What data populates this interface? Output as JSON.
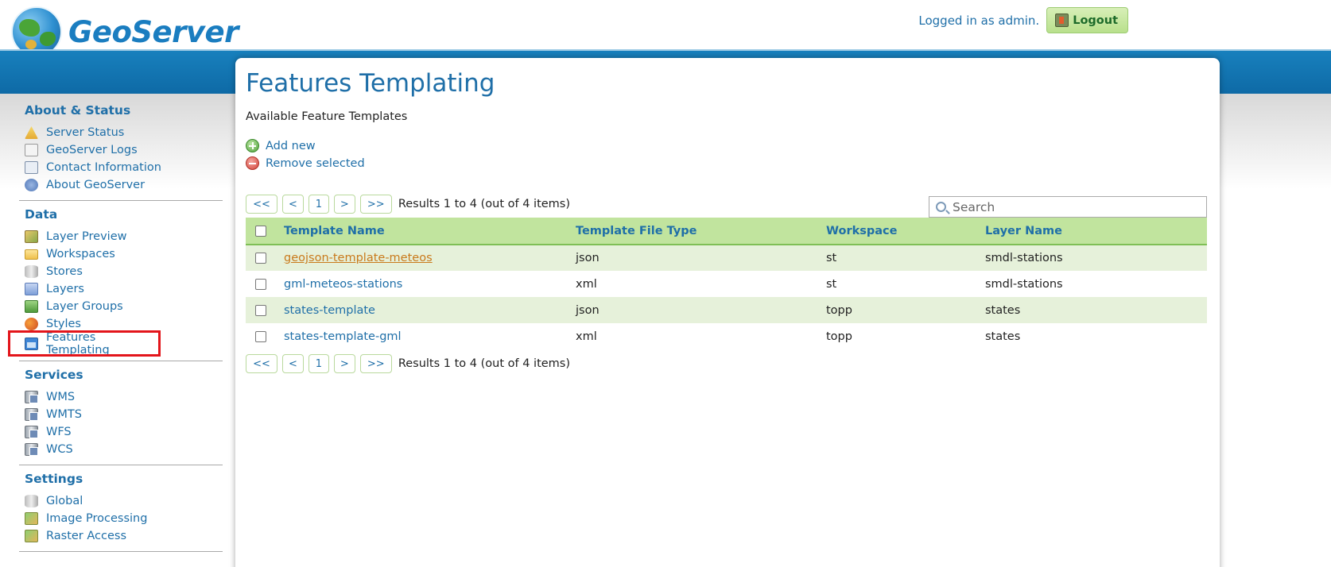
{
  "header": {
    "logo_text": "GeoServer",
    "login_status": "Logged in as admin.",
    "logout_label": "Logout"
  },
  "sidebar": {
    "sections": [
      {
        "title": "About & Status",
        "items": [
          {
            "label": "Server Status",
            "icon": "warning-icon"
          },
          {
            "label": "GeoServer Logs",
            "icon": "document-icon"
          },
          {
            "label": "Contact Information",
            "icon": "contact-card-icon"
          },
          {
            "label": "About GeoServer",
            "icon": "help-icon"
          }
        ]
      },
      {
        "title": "Data",
        "items": [
          {
            "label": "Layer Preview",
            "icon": "map-icon"
          },
          {
            "label": "Workspaces",
            "icon": "folder-icon"
          },
          {
            "label": "Stores",
            "icon": "database-icon"
          },
          {
            "label": "Layers",
            "icon": "layer-icon"
          },
          {
            "label": "Layer Groups",
            "icon": "layer-group-icon"
          },
          {
            "label": "Styles",
            "icon": "palette-icon"
          },
          {
            "label": "Features Templating",
            "icon": "template-icon",
            "highlighted": true
          }
        ]
      },
      {
        "title": "Services",
        "items": [
          {
            "label": "WMS",
            "icon": "wms-service-icon"
          },
          {
            "label": "WMTS",
            "icon": "wmts-service-icon"
          },
          {
            "label": "WFS",
            "icon": "wfs-service-icon"
          },
          {
            "label": "WCS",
            "icon": "wcs-service-icon"
          }
        ]
      },
      {
        "title": "Settings",
        "items": [
          {
            "label": "Global",
            "icon": "server-icon"
          },
          {
            "label": "Image Processing",
            "icon": "image-processing-icon"
          },
          {
            "label": "Raster Access",
            "icon": "raster-icon"
          }
        ]
      }
    ]
  },
  "main": {
    "title": "Features Templating",
    "subtitle": "Available Feature Templates",
    "actions": {
      "add_new": "Add new",
      "remove_selected": "Remove selected"
    },
    "pager": {
      "first": "<<",
      "prev": "<",
      "page": "1",
      "next": ">",
      "last": ">>",
      "info": "Results 1 to 4 (out of 4 items)"
    },
    "search": {
      "placeholder": "Search"
    },
    "table": {
      "columns": [
        "Template Name",
        "Template File Type",
        "Workspace",
        "Layer Name"
      ],
      "rows": [
        {
          "name": "geojson-template-meteos",
          "type": "json",
          "workspace": "st",
          "layer": "smdl-stations"
        },
        {
          "name": "gml-meteos-stations",
          "type": "xml",
          "workspace": "st",
          "layer": "smdl-stations"
        },
        {
          "name": "states-template",
          "type": "json",
          "workspace": "topp",
          "layer": "states"
        },
        {
          "name": "states-template-gml",
          "type": "xml",
          "workspace": "topp",
          "layer": "states"
        }
      ]
    }
  }
}
